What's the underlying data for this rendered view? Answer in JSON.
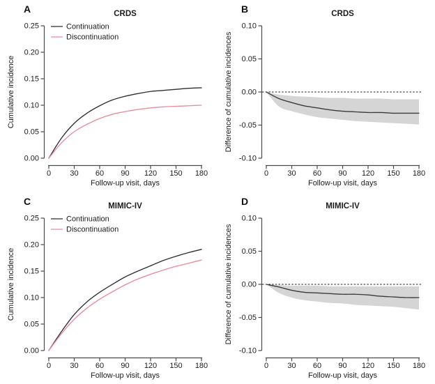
{
  "figure": {
    "background": "#ffffff",
    "colors": {
      "continuation": "#2e2e31",
      "discontinuation": "#ea8a9c",
      "difference_line": "#3a3a3d",
      "confidence_band": "#d5d5d5",
      "axis": "#4a4a4a",
      "zero_line": "#1c1c1c"
    }
  },
  "chart_data": [
    {
      "panel_label": "A",
      "type": "line",
      "title": "CRDS",
      "xlabel": "Follow-up visit, days",
      "ylabel": "Cumulative incidence",
      "xlim": [
        0,
        180
      ],
      "ylim": [
        0,
        0.25
      ],
      "xticks": [
        0,
        30,
        60,
        90,
        120,
        150,
        180
      ],
      "yticks": [
        0.0,
        0.05,
        0.1,
        0.15,
        0.2,
        0.25
      ],
      "grid": false,
      "legend": {
        "position": "top-left",
        "entries": [
          {
            "label": "Continuation",
            "color": "#2e2e31"
          },
          {
            "label": "Discontinuation",
            "color": "#ea8a9c"
          }
        ]
      },
      "x": [
        0,
        15,
        30,
        45,
        60,
        75,
        90,
        105,
        120,
        135,
        150,
        165,
        180
      ],
      "series": [
        {
          "name": "Continuation",
          "color": "#2e2e31",
          "values": [
            0,
            0.038,
            0.066,
            0.085,
            0.099,
            0.11,
            0.117,
            0.122,
            0.126,
            0.128,
            0.13,
            0.132,
            0.133
          ]
        },
        {
          "name": "Discontinuation",
          "color": "#ea8a9c",
          "values": [
            0,
            0.029,
            0.05,
            0.064,
            0.075,
            0.083,
            0.088,
            0.092,
            0.095,
            0.097,
            0.098,
            0.099,
            0.1
          ]
        }
      ]
    },
    {
      "panel_label": "B",
      "type": "line",
      "title": "CRDS",
      "xlabel": "Follow-up visit, days",
      "ylabel": "Difference of cumulative incidences",
      "xlim": [
        0,
        180
      ],
      "ylim": [
        -0.1,
        0.1
      ],
      "xticks": [
        0,
        30,
        60,
        90,
        120,
        150,
        180
      ],
      "yticks": [
        -0.1,
        -0.05,
        0.0,
        0.05,
        0.1
      ],
      "grid": false,
      "zero_line": true,
      "x": [
        0,
        15,
        30,
        45,
        60,
        75,
        90,
        105,
        120,
        135,
        150,
        165,
        180
      ],
      "series": [
        {
          "name": "Difference of cumulative incidences",
          "color": "#3a3a3d",
          "values": [
            0,
            -0.01,
            -0.016,
            -0.021,
            -0.024,
            -0.027,
            -0.029,
            -0.03,
            -0.031,
            -0.031,
            -0.032,
            -0.032,
            -0.032
          ]
        }
      ],
      "band": {
        "name": "confidence band",
        "color": "#d5d5d5",
        "upper": [
          0,
          -0.004,
          -0.006,
          -0.007,
          -0.008,
          -0.009,
          -0.009,
          -0.01,
          -0.01,
          -0.01,
          -0.011,
          -0.011,
          -0.011
        ],
        "lower": [
          0,
          -0.022,
          -0.029,
          -0.034,
          -0.038,
          -0.04,
          -0.042,
          -0.044,
          -0.045,
          -0.046,
          -0.047,
          -0.048,
          -0.049
        ]
      }
    },
    {
      "panel_label": "C",
      "type": "line",
      "title": "MIMIC-IV",
      "xlabel": "Follow-up visit, days",
      "ylabel": "Cumulative incidence",
      "xlim": [
        0,
        180
      ],
      "ylim": [
        0,
        0.25
      ],
      "xticks": [
        0,
        30,
        60,
        90,
        120,
        150,
        180
      ],
      "yticks": [
        0.0,
        0.05,
        0.1,
        0.15,
        0.2,
        0.25
      ],
      "grid": false,
      "legend": {
        "position": "top-left",
        "entries": [
          {
            "label": "Continuation",
            "color": "#2e2e31"
          },
          {
            "label": "Discontinuation",
            "color": "#ea8a9c"
          }
        ]
      },
      "x": [
        0,
        15,
        30,
        45,
        60,
        75,
        90,
        105,
        120,
        135,
        150,
        165,
        180
      ],
      "series": [
        {
          "name": "Continuation",
          "color": "#2e2e31",
          "values": [
            0,
            0.036,
            0.068,
            0.092,
            0.11,
            0.125,
            0.139,
            0.15,
            0.16,
            0.17,
            0.178,
            0.185,
            0.191
          ]
        },
        {
          "name": "Discontinuation",
          "color": "#ea8a9c",
          "values": [
            0,
            0.032,
            0.059,
            0.08,
            0.097,
            0.111,
            0.124,
            0.135,
            0.144,
            0.152,
            0.159,
            0.165,
            0.171
          ]
        }
      ]
    },
    {
      "panel_label": "D",
      "type": "line",
      "title": "MIMIC-IV",
      "xlabel": "Follow-up visit, days",
      "ylabel": "Difference of cumulative incidences",
      "xlim": [
        0,
        180
      ],
      "ylim": [
        -0.1,
        0.1
      ],
      "xticks": [
        0,
        30,
        60,
        90,
        120,
        150,
        180
      ],
      "yticks": [
        -0.1,
        -0.05,
        0.0,
        0.05,
        0.1
      ],
      "grid": false,
      "zero_line": true,
      "x": [
        0,
        15,
        30,
        45,
        60,
        75,
        90,
        105,
        120,
        135,
        150,
        165,
        180
      ],
      "series": [
        {
          "name": "Difference of cumulative incidences",
          "color": "#3a3a3d",
          "values": [
            0,
            -0.004,
            -0.009,
            -0.012,
            -0.013,
            -0.014,
            -0.015,
            -0.015,
            -0.016,
            -0.018,
            -0.019,
            -0.02,
            -0.02
          ]
        }
      ],
      "band": {
        "name": "confidence band",
        "color": "#d5d5d5",
        "upper": [
          0,
          -0.001,
          -0.002,
          -0.002,
          -0.002,
          -0.003,
          -0.003,
          -0.003,
          -0.003,
          -0.003,
          -0.003,
          -0.003,
          -0.003
        ],
        "lower": [
          0,
          -0.013,
          -0.02,
          -0.024,
          -0.026,
          -0.028,
          -0.029,
          -0.031,
          -0.032,
          -0.033,
          -0.034,
          -0.036,
          -0.038
        ]
      }
    }
  ]
}
